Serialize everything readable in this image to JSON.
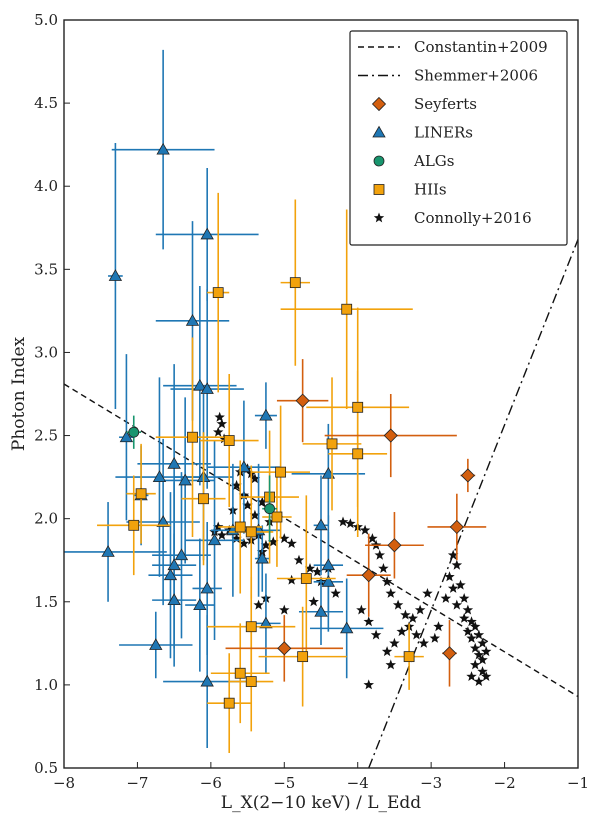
{
  "chart_data": {
    "type": "scatter",
    "title": "",
    "xlabel": "L_X(2−10 keV) / L_Edd",
    "ylabel": "Photon Index",
    "xlim": [
      -8,
      -1
    ],
    "ylim": [
      0.5,
      5.0
    ],
    "xticks": [
      "−8",
      "−7",
      "−6",
      "−5",
      "−4",
      "−3",
      "−2",
      "−1"
    ],
    "yticks": [
      "0.5",
      "1.0",
      "1.5",
      "2.0",
      "2.5",
      "3.0",
      "3.5",
      "4.0",
      "4.5",
      "5.0"
    ],
    "grid": false,
    "legend_position": "top-right",
    "colors": {
      "seyferts": "#d35f0f",
      "liners": "#1f77b4",
      "algs": "#18956e",
      "hiis": "#f2a20c",
      "connolly": "#111111"
    },
    "lines": [
      {
        "name": "Constantin+2009",
        "style": "dashed",
        "x": [
          -8,
          -1
        ],
        "y": [
          2.81,
          0.93
        ]
      },
      {
        "name": "Shemmer+2006",
        "style": "dashdot",
        "x": [
          -3.85,
          -1
        ],
        "y": [
          0.5,
          3.68
        ]
      }
    ],
    "series": [
      {
        "name": "Seyferts",
        "marker": "diamond",
        "points": [
          {
            "x": -4.75,
            "y": 2.71,
            "xerr": 0.35,
            "yerr": 0.25
          },
          {
            "x": -3.55,
            "y": 2.5,
            "xerr": 0.9,
            "yerr": 0.25
          },
          {
            "x": -3.5,
            "y": 1.84,
            "xerr": 0.4,
            "yerr": 0.2
          },
          {
            "x": -3.85,
            "y": 1.66,
            "xerr": 0.3,
            "yerr": 0.25
          },
          {
            "x": -2.65,
            "y": 1.95,
            "xerr": 0.4,
            "yerr": 0.2
          },
          {
            "x": -2.5,
            "y": 2.26,
            "xerr": 0.1,
            "yerr": 0.1
          },
          {
            "x": -2.75,
            "y": 1.19,
            "xerr": 0.1,
            "yerr": 0.2
          },
          {
            "x": -5.0,
            "y": 1.22,
            "xerr": 0.8,
            "yerr": 0.2
          }
        ]
      },
      {
        "name": "LINERs",
        "marker": "triangle",
        "points": [
          {
            "x": -6.65,
            "y": 4.22,
            "xerr": 0.7,
            "yerr": 0.6
          },
          {
            "x": -7.3,
            "y": 3.46,
            "xerr": 0.1,
            "yerr": 0.8
          },
          {
            "x": -6.05,
            "y": 3.71,
            "xerr": 0.7,
            "yerr": 0.4
          },
          {
            "x": -6.25,
            "y": 3.19,
            "xerr": 0.5,
            "yerr": 0.6
          },
          {
            "x": -6.15,
            "y": 2.8,
            "xerr": 0.5,
            "yerr": 0.6
          },
          {
            "x": -6.05,
            "y": 2.78,
            "xerr": 0.5,
            "yerr": 0.6
          },
          {
            "x": -7.15,
            "y": 2.49,
            "xerr": 0.1,
            "yerr": 0.5
          },
          {
            "x": -5.25,
            "y": 2.62,
            "xerr": 0.15,
            "yerr": 0.2
          },
          {
            "x": -6.5,
            "y": 2.33,
            "xerr": 0.5,
            "yerr": 0.6
          },
          {
            "x": -6.7,
            "y": 2.25,
            "xerr": 0.6,
            "yerr": 0.6
          },
          {
            "x": -6.95,
            "y": 2.14,
            "xerr": 0.1,
            "yerr": 0.3
          },
          {
            "x": -6.35,
            "y": 2.23,
            "xerr": 0.4,
            "yerr": 0.5
          },
          {
            "x": -6.1,
            "y": 2.25,
            "xerr": 0.4,
            "yerr": 0.5
          },
          {
            "x": -5.55,
            "y": 2.31,
            "xerr": 0.5,
            "yerr": 0.4
          },
          {
            "x": -6.65,
            "y": 1.98,
            "xerr": 0.5,
            "yerr": 0.5
          },
          {
            "x": -5.95,
            "y": 1.87,
            "xerr": 0.4,
            "yerr": 0.6
          },
          {
            "x": -5.7,
            "y": 1.93,
            "xerr": 0.3,
            "yerr": 0.4
          },
          {
            "x": -5.35,
            "y": 1.93,
            "xerr": 0.3,
            "yerr": 0.4
          },
          {
            "x": -7.4,
            "y": 1.8,
            "xerr": 0.8,
            "yerr": 0.3
          },
          {
            "x": -6.4,
            "y": 1.78,
            "xerr": 0.4,
            "yerr": 0.5
          },
          {
            "x": -6.5,
            "y": 1.72,
            "xerr": 0.3,
            "yerr": 0.5
          },
          {
            "x": -6.55,
            "y": 1.66,
            "xerr": 0.3,
            "yerr": 0.5
          },
          {
            "x": -6.5,
            "y": 1.51,
            "xerr": 0.3,
            "yerr": 0.4
          },
          {
            "x": -6.15,
            "y": 1.48,
            "xerr": 0.2,
            "yerr": 0.4
          },
          {
            "x": -6.05,
            "y": 1.58,
            "xerr": 0.2,
            "yerr": 0.4
          },
          {
            "x": -6.75,
            "y": 1.24,
            "xerr": 0.5,
            "yerr": 0.2
          },
          {
            "x": -6.05,
            "y": 1.02,
            "xerr": 0.6,
            "yerr": 0.4
          },
          {
            "x": -4.4,
            "y": 2.27,
            "xerr": 0.5,
            "yerr": 0.3
          },
          {
            "x": -4.5,
            "y": 1.96,
            "xerr": 0.1,
            "yerr": 0.3
          },
          {
            "x": -4.4,
            "y": 1.72,
            "xerr": 0.2,
            "yerr": 0.3
          },
          {
            "x": -4.4,
            "y": 1.62,
            "xerr": 0.2,
            "yerr": 0.3
          },
          {
            "x": -4.5,
            "y": 1.44,
            "xerr": 0.3,
            "yerr": 0.2
          },
          {
            "x": -4.15,
            "y": 1.34,
            "xerr": 0.5,
            "yerr": 0.3
          },
          {
            "x": -5.25,
            "y": 1.37,
            "xerr": 0.2,
            "yerr": 0.3
          },
          {
            "x": -5.3,
            "y": 1.76,
            "xerr": 0.1,
            "yerr": 0.2
          }
        ]
      },
      {
        "name": "ALGs",
        "marker": "circle",
        "points": [
          {
            "x": -7.05,
            "y": 2.52,
            "xerr": 0.1,
            "yerr": 0.1
          },
          {
            "x": -5.2,
            "y": 2.06,
            "xerr": 0.1,
            "yerr": 0.2
          }
        ]
      },
      {
        "name": "HIIs",
        "marker": "square",
        "points": [
          {
            "x": -4.85,
            "y": 3.42,
            "xerr": 0.2,
            "yerr": 0.5
          },
          {
            "x": -5.9,
            "y": 3.36,
            "xerr": 0.15,
            "yerr": 0.6
          },
          {
            "x": -4.15,
            "y": 3.26,
            "xerr": 0.9,
            "yerr": 0.6
          },
          {
            "x": -4.0,
            "y": 2.67,
            "xerr": 0.7,
            "yerr": 0.6
          },
          {
            "x": -6.25,
            "y": 2.49,
            "xerr": 0.5,
            "yerr": 0.6
          },
          {
            "x": -5.75,
            "y": 2.47,
            "xerr": 0.4,
            "yerr": 0.4
          },
          {
            "x": -4.35,
            "y": 2.45,
            "xerr": 0.4,
            "yerr": 0.4
          },
          {
            "x": -4.0,
            "y": 2.39,
            "xerr": 0.4,
            "yerr": 0.5
          },
          {
            "x": -5.05,
            "y": 2.28,
            "xerr": 0.4,
            "yerr": 0.4
          },
          {
            "x": -6.95,
            "y": 2.15,
            "xerr": 0.2,
            "yerr": 0.3
          },
          {
            "x": -6.1,
            "y": 2.12,
            "xerr": 0.3,
            "yerr": 0.4
          },
          {
            "x": -5.2,
            "y": 2.13,
            "xerr": 0.4,
            "yerr": 0.4
          },
          {
            "x": -5.1,
            "y": 2.01,
            "xerr": 0.2,
            "yerr": 0.3
          },
          {
            "x": -7.05,
            "y": 1.96,
            "xerr": 0.5,
            "yerr": 0.3
          },
          {
            "x": -5.6,
            "y": 1.95,
            "xerr": 0.3,
            "yerr": 0.4
          },
          {
            "x": -5.45,
            "y": 1.92,
            "xerr": 0.3,
            "yerr": 0.4
          },
          {
            "x": -4.7,
            "y": 1.64,
            "xerr": 0.4,
            "yerr": 0.5
          },
          {
            "x": -5.45,
            "y": 1.35,
            "xerr": 0.6,
            "yerr": 0.3
          },
          {
            "x": -4.75,
            "y": 1.17,
            "xerr": 0.6,
            "yerr": 0.3
          },
          {
            "x": -3.3,
            "y": 1.17,
            "xerr": 0.2,
            "yerr": 0.2
          },
          {
            "x": -5.6,
            "y": 1.07,
            "xerr": 0.4,
            "yerr": 0.3
          },
          {
            "x": -5.45,
            "y": 1.02,
            "xerr": 0.3,
            "yerr": 0.3
          },
          {
            "x": -5.75,
            "y": 0.89,
            "xerr": 0.3,
            "yerr": 0.3
          }
        ]
      },
      {
        "name": "Connolly+2016",
        "marker": "star",
        "points": [
          {
            "x": -5.88,
            "y": 2.61
          },
          {
            "x": -5.85,
            "y": 2.57
          },
          {
            "x": -5.9,
            "y": 2.52
          },
          {
            "x": -5.82,
            "y": 2.48
          },
          {
            "x": -5.5,
            "y": 2.3
          },
          {
            "x": -5.45,
            "y": 2.27
          },
          {
            "x": -5.4,
            "y": 2.24
          },
          {
            "x": -5.6,
            "y": 2.28
          },
          {
            "x": -5.65,
            "y": 2.2
          },
          {
            "x": -5.55,
            "y": 2.14
          },
          {
            "x": -5.3,
            "y": 2.1
          },
          {
            "x": -5.5,
            "y": 2.08
          },
          {
            "x": -5.7,
            "y": 2.05
          },
          {
            "x": -5.4,
            "y": 2.02
          },
          {
            "x": -5.2,
            "y": 1.98
          },
          {
            "x": -5.9,
            "y": 1.95
          },
          {
            "x": -5.95,
            "y": 1.92
          },
          {
            "x": -5.85,
            "y": 1.9
          },
          {
            "x": -5.75,
            "y": 1.93
          },
          {
            "x": -5.65,
            "y": 1.88
          },
          {
            "x": -5.55,
            "y": 1.85
          },
          {
            "x": -5.45,
            "y": 1.87
          },
          {
            "x": -5.35,
            "y": 1.9
          },
          {
            "x": -5.25,
            "y": 1.84
          },
          {
            "x": -5.3,
            "y": 1.8
          },
          {
            "x": -5.15,
            "y": 1.86
          },
          {
            "x": -5.0,
            "y": 1.88
          },
          {
            "x": -4.9,
            "y": 1.85
          },
          {
            "x": -4.8,
            "y": 1.75
          },
          {
            "x": -4.65,
            "y": 1.7
          },
          {
            "x": -4.55,
            "y": 1.68
          },
          {
            "x": -4.4,
            "y": 1.7
          },
          {
            "x": -4.5,
            "y": 1.62
          },
          {
            "x": -4.6,
            "y": 1.5
          },
          {
            "x": -4.3,
            "y": 1.55
          },
          {
            "x": -5.25,
            "y": 1.52
          },
          {
            "x": -5.35,
            "y": 1.48
          },
          {
            "x": -5.0,
            "y": 1.45
          },
          {
            "x": -4.9,
            "y": 1.63
          },
          {
            "x": -4.2,
            "y": 1.98
          },
          {
            "x": -4.1,
            "y": 1.97
          },
          {
            "x": -4.0,
            "y": 1.95
          },
          {
            "x": -3.9,
            "y": 1.93
          },
          {
            "x": -3.8,
            "y": 1.88
          },
          {
            "x": -3.75,
            "y": 1.84
          },
          {
            "x": -3.7,
            "y": 1.78
          },
          {
            "x": -3.65,
            "y": 1.7
          },
          {
            "x": -3.6,
            "y": 1.62
          },
          {
            "x": -3.55,
            "y": 1.55
          },
          {
            "x": -3.45,
            "y": 1.48
          },
          {
            "x": -3.35,
            "y": 1.42
          },
          {
            "x": -3.3,
            "y": 1.35
          },
          {
            "x": -3.2,
            "y": 1.3
          },
          {
            "x": -3.1,
            "y": 1.25
          },
          {
            "x": -3.05,
            "y": 1.55
          },
          {
            "x": -3.15,
            "y": 1.45
          },
          {
            "x": -3.25,
            "y": 1.4
          },
          {
            "x": -3.4,
            "y": 1.32
          },
          {
            "x": -3.5,
            "y": 1.25
          },
          {
            "x": -3.6,
            "y": 1.2
          },
          {
            "x": -3.75,
            "y": 1.3
          },
          {
            "x": -3.85,
            "y": 1.38
          },
          {
            "x": -3.95,
            "y": 1.45
          },
          {
            "x": -3.85,
            "y": 1.0
          },
          {
            "x": -3.55,
            "y": 1.12
          },
          {
            "x": -2.7,
            "y": 1.78
          },
          {
            "x": -2.65,
            "y": 1.72
          },
          {
            "x": -2.75,
            "y": 1.65
          },
          {
            "x": -2.7,
            "y": 1.58
          },
          {
            "x": -2.6,
            "y": 1.6
          },
          {
            "x": -2.55,
            "y": 1.52
          },
          {
            "x": -2.65,
            "y": 1.48
          },
          {
            "x": -2.5,
            "y": 1.45
          },
          {
            "x": -2.55,
            "y": 1.4
          },
          {
            "x": -2.45,
            "y": 1.38
          },
          {
            "x": -2.4,
            "y": 1.35
          },
          {
            "x": -2.5,
            "y": 1.32
          },
          {
            "x": -2.35,
            "y": 1.3
          },
          {
            "x": -2.45,
            "y": 1.28
          },
          {
            "x": -2.3,
            "y": 1.25
          },
          {
            "x": -2.4,
            "y": 1.22
          },
          {
            "x": -2.35,
            "y": 1.18
          },
          {
            "x": -2.3,
            "y": 1.15
          },
          {
            "x": -2.25,
            "y": 1.2
          },
          {
            "x": -2.4,
            "y": 1.12
          },
          {
            "x": -2.3,
            "y": 1.08
          },
          {
            "x": -2.25,
            "y": 1.05
          },
          {
            "x": -2.35,
            "y": 1.02
          },
          {
            "x": -2.45,
            "y": 1.05
          },
          {
            "x": -2.9,
            "y": 1.35
          },
          {
            "x": -2.95,
            "y": 1.28
          },
          {
            "x": -2.8,
            "y": 1.52
          }
        ]
      }
    ]
  }
}
